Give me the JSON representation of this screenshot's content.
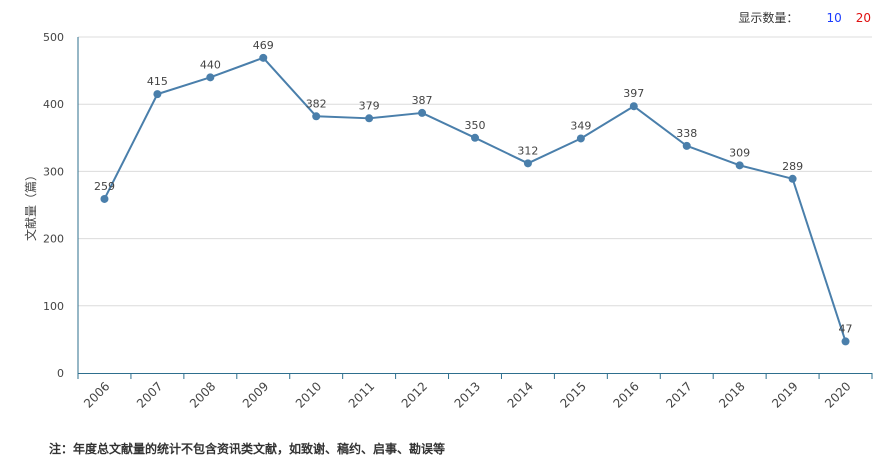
{
  "controls": {
    "label": "显示数量：",
    "options": [
      "10",
      "20"
    ]
  },
  "note": "注：年度总文献量的统计不包含资讯类文献，如致谢、稿约、启事、勘误等",
  "colors": {
    "line": "#4a7fab",
    "grid": "#dcdcdc",
    "axis": "#2e6f8e"
  },
  "chart_data": {
    "type": "line",
    "title": "",
    "xlabel": "",
    "ylabel": "文献量（篇）",
    "ylim": [
      0,
      500
    ],
    "yticks": [
      0,
      100,
      200,
      300,
      400,
      500
    ],
    "grid": true,
    "categories": [
      "2006",
      "2007",
      "2008",
      "2009",
      "2010",
      "2011",
      "2012",
      "2013",
      "2014",
      "2015",
      "2016",
      "2017",
      "2018",
      "2019",
      "2020"
    ],
    "series": [
      {
        "values": [
          259,
          415,
          440,
          469,
          382,
          379,
          387,
          350,
          312,
          349,
          397,
          338,
          309,
          289,
          47
        ]
      }
    ]
  }
}
